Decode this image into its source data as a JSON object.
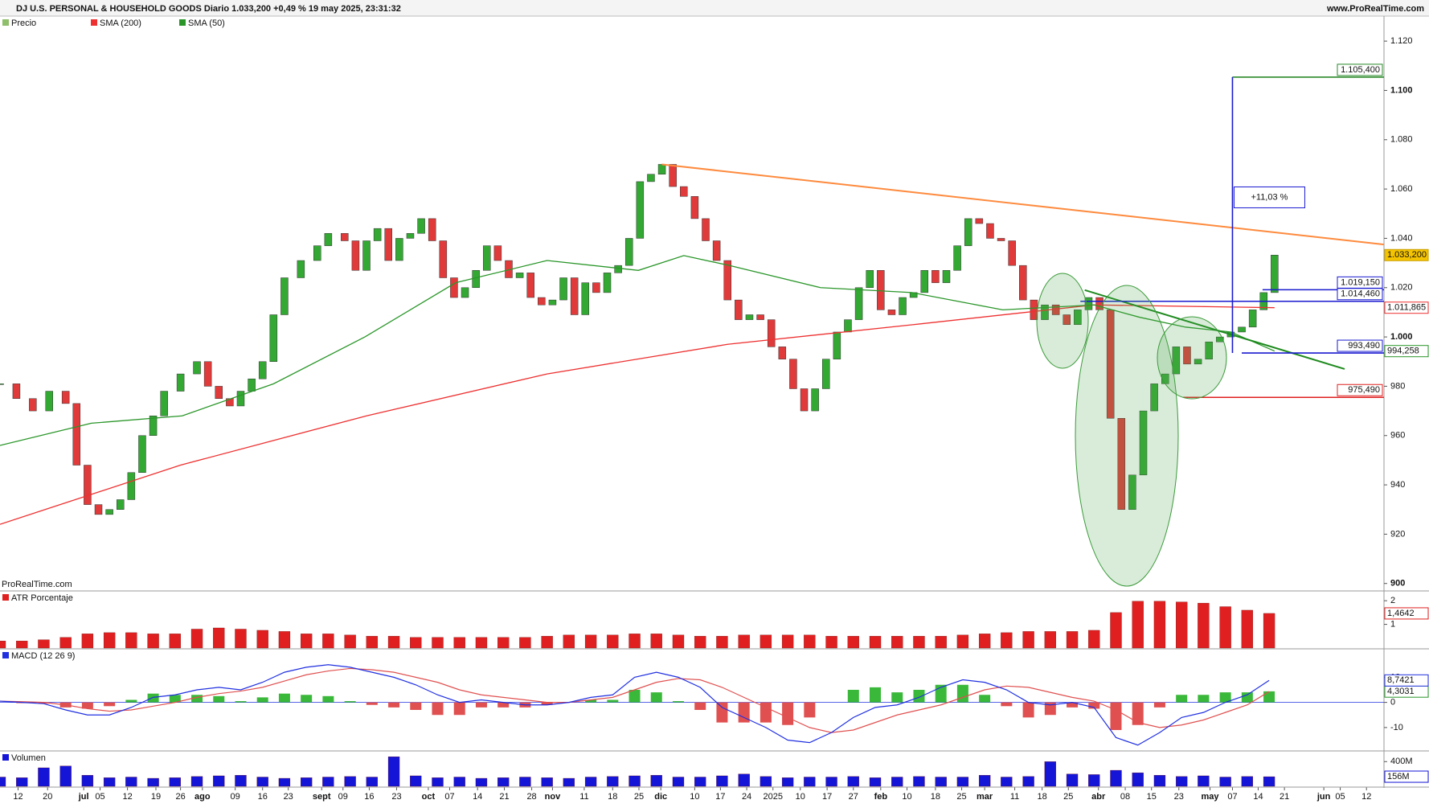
{
  "header": {
    "title": "DJ U.S. PERSONAL & HOUSEHOLD GOODS Diario 1.033,200 +0,49 % 19 may 2025, 23:31:32",
    "site": "www.ProRealTime.com"
  },
  "chart_data": [
    {
      "type": "candlestick",
      "watermark": "ProRealTime.com",
      "xlim": [
        0,
        253
      ],
      "xticks": [
        {
          "value": 3.3,
          "label": "12"
        },
        {
          "value": 8.7,
          "label": "20"
        },
        {
          "value": 15.3,
          "label": "jul"
        },
        {
          "value": 18.3,
          "label": "05"
        },
        {
          "value": 23.3,
          "label": "12"
        },
        {
          "value": 28.5,
          "label": "19"
        },
        {
          "value": 33,
          "label": "26"
        },
        {
          "value": 37,
          "label": "ago"
        },
        {
          "value": 43,
          "label": "09"
        },
        {
          "value": 48,
          "label": "16"
        },
        {
          "value": 52.7,
          "label": "23"
        },
        {
          "value": 58.8,
          "label": "sept"
        },
        {
          "value": 62.7,
          "label": "09"
        },
        {
          "value": 67.5,
          "label": "16"
        },
        {
          "value": 72.5,
          "label": "23"
        },
        {
          "value": 78.3,
          "label": "oct"
        },
        {
          "value": 82.2,
          "label": "07"
        },
        {
          "value": 87.3,
          "label": "14"
        },
        {
          "value": 92.2,
          "label": "21"
        },
        {
          "value": 97.2,
          "label": "28"
        },
        {
          "value": 101,
          "label": "nov"
        },
        {
          "value": 106.8,
          "label": "11"
        },
        {
          "value": 112,
          "label": "18"
        },
        {
          "value": 116.8,
          "label": "25"
        },
        {
          "value": 120.8,
          "label": "dic"
        },
        {
          "value": 127,
          "label": "10"
        },
        {
          "value": 131.7,
          "label": "17"
        },
        {
          "value": 136.5,
          "label": "24"
        },
        {
          "value": 141.3,
          "label": "2025"
        },
        {
          "value": 146.3,
          "label": "10"
        },
        {
          "value": 151.2,
          "label": "17"
        },
        {
          "value": 156,
          "label": "27"
        },
        {
          "value": 161,
          "label": "feb"
        },
        {
          "value": 165.8,
          "label": "10"
        },
        {
          "value": 171,
          "label": "18"
        },
        {
          "value": 175.8,
          "label": "25"
        },
        {
          "value": 180,
          "label": "mar"
        },
        {
          "value": 185.5,
          "label": "11"
        },
        {
          "value": 190.5,
          "label": "18"
        },
        {
          "value": 195.3,
          "label": "25"
        },
        {
          "value": 200.8,
          "label": "abr"
        },
        {
          "value": 205.7,
          "label": "08"
        },
        {
          "value": 210.5,
          "label": "15"
        },
        {
          "value": 215.5,
          "label": "23"
        },
        {
          "value": 221.2,
          "label": "may"
        },
        {
          "value": 225.3,
          "label": "07"
        },
        {
          "value": 230,
          "label": "14"
        },
        {
          "value": 234.8,
          "label": "21"
        },
        {
          "value": 242,
          "label": "jun"
        },
        {
          "value": 245,
          "label": "05"
        },
        {
          "value": 249.8,
          "label": "12"
        }
      ],
      "ylim": [
        897.3,
        1129.5
      ],
      "yticks": [
        900,
        {
          "value": 920,
          "label": "920"
        },
        {
          "value": 940,
          "label": "940"
        },
        {
          "value": 960,
          "label": "960"
        },
        {
          "value": 980,
          "label": "980"
        },
        {
          "value": 1000,
          "label": "1.000"
        },
        {
          "value": 1020,
          "label": "1.020"
        },
        {
          "value": 1040,
          "label": "1.040"
        },
        {
          "value": 1060,
          "label": "1.060"
        },
        {
          "value": 1080,
          "label": "1.080"
        },
        {
          "value": 1100,
          "label": "1.100"
        },
        {
          "value": 1120,
          "label": "1.120"
        }
      ],
      "series": [
        {
          "name": "Precio",
          "color": "#8fbf6a",
          "color_up": "#33a833",
          "color_down": "#e03a3a",
          "last_label": "1.033,200",
          "x": [
            0,
            3,
            6,
            9,
            12,
            14,
            16,
            18,
            20,
            22,
            24,
            26,
            28,
            30,
            33,
            36,
            38,
            40,
            42,
            44,
            46,
            48,
            50,
            52,
            55,
            58,
            60,
            63,
            65,
            67,
            69,
            71,
            73,
            75,
            77,
            79,
            81,
            83,
            85,
            87,
            89,
            91,
            93,
            95,
            97,
            99,
            101,
            103,
            105,
            107,
            109,
            111,
            113,
            115,
            117,
            119,
            121,
            123,
            125,
            127,
            129,
            131,
            133,
            135,
            137,
            139,
            141,
            143,
            145,
            147,
            149,
            151,
            153,
            155,
            157,
            159,
            161,
            163,
            165,
            167,
            169,
            171,
            173,
            175,
            177,
            179,
            181,
            183,
            185,
            187,
            189,
            191,
            193,
            195,
            197,
            199,
            201,
            203,
            205,
            207,
            209,
            211,
            213,
            215,
            217,
            219,
            221,
            223,
            225,
            227,
            229,
            231,
            233
          ],
          "values": [
            981,
            975,
            970,
            978,
            973,
            948,
            932,
            928,
            930,
            934,
            945,
            960,
            968,
            978,
            985,
            990,
            980,
            975,
            972,
            978,
            983,
            990,
            1009,
            1024,
            1031,
            1037,
            1042,
            1039,
            1027,
            1039,
            1044,
            1031,
            1040,
            1042,
            1048,
            1039,
            1024,
            1016,
            1020,
            1027,
            1037,
            1031,
            1024,
            1026,
            1016,
            1013,
            1015,
            1024,
            1009,
            1022,
            1018,
            1026,
            1029,
            1040,
            1063,
            1066,
            1070,
            1061,
            1057,
            1048,
            1039,
            1031,
            1015,
            1007,
            1009,
            1007,
            996,
            991,
            979,
            970,
            979,
            991,
            1002,
            1007,
            1020,
            1027,
            1011,
            1009,
            1016,
            1018,
            1027,
            1022,
            1027,
            1037,
            1048,
            1046,
            1040,
            1039,
            1029,
            1015,
            1007,
            1013,
            1009,
            1005,
            1011,
            1016,
            1011,
            967,
            930,
            944,
            970,
            981,
            985,
            996,
            989,
            991,
            998,
            1000,
            1002,
            1004,
            1011,
            1018,
            1033.2
          ]
        },
        {
          "name": "SMA (200)",
          "color": "#ee3030",
          "last_label": "1.011,865",
          "x": [
            0,
            33,
            67,
            100,
            133,
            167,
            200,
            233
          ],
          "values": [
            924,
            948,
            968,
            985,
            997,
            1005,
            1013,
            1011.865
          ]
        },
        {
          "name": "SMA (50)",
          "color": "#2a962a",
          "last_label": "994,258",
          "x": [
            0,
            16.7,
            33.3,
            50,
            66.7,
            83.3,
            100,
            116.7,
            125,
            133.3,
            150,
            166.7,
            183.3,
            200,
            208.3,
            216.7,
            225,
            233
          ],
          "values": [
            956,
            965,
            968,
            981,
            1000,
            1022,
            1031,
            1027,
            1033,
            1029,
            1020,
            1018,
            1011,
            1013,
            1008,
            1004,
            1002,
            994.258
          ]
        }
      ],
      "levels": [
        {
          "value": 1105.4,
          "label": "1.105,400",
          "x": 225.3,
          "color": "#2a8a2a"
        },
        {
          "value": 1019.15,
          "label": "1.019,150",
          "x": 230.8,
          "color": "#1a1ad0"
        },
        {
          "value": 1014.46,
          "label": "1.014,460",
          "x": 197.5,
          "color": "#1a1ad0"
        },
        {
          "value": 993.49,
          "label": "993,490",
          "x": 227,
          "color": "#1a1ad0"
        },
        {
          "value": 975.49,
          "label": "975,490",
          "x": 216.3,
          "color": "#e02020"
        }
      ],
      "trendlines": [
        {
          "color": "#ff8a3d",
          "x": [
            121,
            253
          ],
          "values": [
            1070,
            1037.5
          ]
        },
        {
          "color": "#1e8a1e",
          "x": [
            198.3,
            245.8
          ],
          "values": [
            1019,
            987
          ]
        }
      ],
      "measure": {
        "x": 225.3,
        "from": 993.49,
        "to": 1105.4,
        "value": 11.03,
        "label": "+11,03 %",
        "color": "#1a1ad0"
      }
    },
    {
      "type": "bar",
      "title": "ATR Porcentaje",
      "color": "#e02020",
      "last_label": "1,4642",
      "x": [
        0,
        4,
        8,
        12,
        16,
        20,
        24,
        28,
        32,
        36,
        40,
        44,
        48,
        52,
        56,
        60,
        64,
        68,
        72,
        76,
        80,
        84,
        88,
        92,
        96,
        100,
        104,
        108,
        112,
        116,
        120,
        124,
        128,
        132,
        136,
        140,
        144,
        148,
        152,
        156,
        160,
        164,
        168,
        172,
        176,
        180,
        184,
        188,
        192,
        196,
        200,
        204,
        208,
        212,
        216,
        220,
        224,
        228,
        232
      ],
      "values": [
        0.3,
        0.3,
        0.35,
        0.45,
        0.6,
        0.65,
        0.65,
        0.6,
        0.6,
        0.8,
        0.85,
        0.8,
        0.75,
        0.7,
        0.6,
        0.6,
        0.55,
        0.5,
        0.5,
        0.45,
        0.45,
        0.45,
        0.45,
        0.45,
        0.45,
        0.5,
        0.55,
        0.55,
        0.55,
        0.6,
        0.6,
        0.55,
        0.5,
        0.5,
        0.55,
        0.55,
        0.55,
        0.55,
        0.5,
        0.5,
        0.5,
        0.5,
        0.5,
        0.5,
        0.55,
        0.6,
        0.65,
        0.7,
        0.7,
        0.7,
        0.75,
        1.5,
        1.98,
        1.98,
        1.95,
        1.9,
        1.75,
        1.6,
        1.4642
      ],
      "ylim": [
        0,
        2.38
      ],
      "yticks": [
        1,
        2
      ]
    },
    {
      "type": "macd",
      "title": "MACD (12 26 9)",
      "x": [
        0,
        4,
        8,
        12,
        16,
        20,
        24,
        28,
        32,
        36,
        40,
        44,
        48,
        52,
        56,
        60,
        64,
        68,
        72,
        76,
        80,
        84,
        88,
        92,
        96,
        100,
        104,
        108,
        112,
        116,
        120,
        124,
        128,
        132,
        136,
        140,
        144,
        148,
        152,
        156,
        160,
        164,
        168,
        172,
        176,
        180,
        184,
        188,
        192,
        196,
        200,
        204,
        208,
        212,
        216,
        220,
        224,
        228,
        232
      ],
      "macd": {
        "color": "#2030e0",
        "last_label": "8,7421",
        "values": [
          0.5,
          0,
          -0.5,
          -3,
          -5,
          -5,
          -2,
          2,
          3,
          5,
          6,
          5,
          8,
          12,
          14,
          15,
          14,
          12,
          10,
          7,
          3,
          0,
          1,
          0,
          -1,
          -1,
          0,
          2,
          3,
          10,
          12,
          10,
          6,
          -2,
          -6,
          -10,
          -15,
          -16,
          -12,
          -6,
          -2,
          -1,
          2,
          6,
          9,
          8,
          5,
          0,
          -1,
          0,
          -2,
          -14,
          -17,
          -12,
          -6,
          -4,
          0,
          3,
          8.7421
        ]
      },
      "signal": {
        "color": "#e05050",
        "label_color": "#2a962a",
        "last_label": "4,3031",
        "values": [
          0.5,
          0.3,
          0,
          -1,
          -2.5,
          -3.5,
          -3,
          -1.5,
          0,
          2,
          3.5,
          4.5,
          6,
          8.5,
          11,
          12.5,
          13.5,
          13,
          12,
          10,
          8,
          5,
          3,
          2,
          1,
          0,
          0,
          1,
          2,
          5,
          8,
          9.5,
          9,
          6,
          2,
          -2,
          -6,
          -10,
          -12,
          -11,
          -8,
          -5,
          -3,
          -1,
          2,
          5,
          6.5,
          6,
          4,
          2,
          0.5,
          -3,
          -8,
          -10,
          -9,
          -7,
          -4,
          -1,
          4.3031
        ]
      },
      "histogram": {
        "color_up": "#3ab83a",
        "color_down": "#e05050",
        "values": [
          0,
          -0.3,
          -0.5,
          -2,
          -2.5,
          -1.5,
          1,
          3.5,
          3,
          3,
          2.5,
          0.5,
          2,
          3.5,
          3,
          2.5,
          0.5,
          -1,
          -2,
          -3,
          -5,
          -5,
          -2,
          -2,
          -2,
          -1,
          0,
          1,
          1,
          5,
          4,
          0.5,
          -3,
          -8,
          -8,
          -8,
          -9,
          -6,
          0,
          5,
          6,
          4,
          5,
          7,
          7,
          3,
          -1.5,
          -6,
          -5,
          -2,
          -2.5,
          -11,
          -9,
          -2,
          3,
          3,
          4,
          4,
          4.4
        ]
      },
      "ylim": [
        -19,
        21
      ],
      "yticks": [
        -10,
        0,
        10
      ]
    },
    {
      "type": "bar",
      "title": "Volumen",
      "color": "#1515d8",
      "last_label": "156M",
      "x": [
        0,
        4,
        8,
        12,
        16,
        20,
        24,
        28,
        32,
        36,
        40,
        44,
        48,
        52,
        56,
        60,
        64,
        68,
        72,
        76,
        80,
        84,
        88,
        92,
        96,
        100,
        104,
        108,
        112,
        116,
        120,
        124,
        128,
        132,
        136,
        140,
        144,
        148,
        152,
        156,
        160,
        164,
        168,
        172,
        176,
        180,
        184,
        188,
        192,
        196,
        200,
        204,
        208,
        212,
        216,
        220,
        224,
        228,
        232
      ],
      "values": [
        150,
        140,
        300,
        330,
        180,
        140,
        150,
        130,
        140,
        160,
        170,
        180,
        150,
        130,
        140,
        150,
        160,
        150,
        480,
        170,
        140,
        150,
        130,
        140,
        150,
        140,
        130,
        150,
        160,
        170,
        180,
        150,
        150,
        170,
        200,
        160,
        140,
        150,
        150,
        160,
        140,
        150,
        160,
        150,
        150,
        180,
        150,
        160,
        400,
        200,
        190,
        260,
        220,
        180,
        160,
        170,
        150,
        160,
        156
      ],
      "ylim": [
        0,
        560
      ],
      "yticks": [
        {
          "value": 400,
          "label": "400M"
        }
      ]
    }
  ]
}
